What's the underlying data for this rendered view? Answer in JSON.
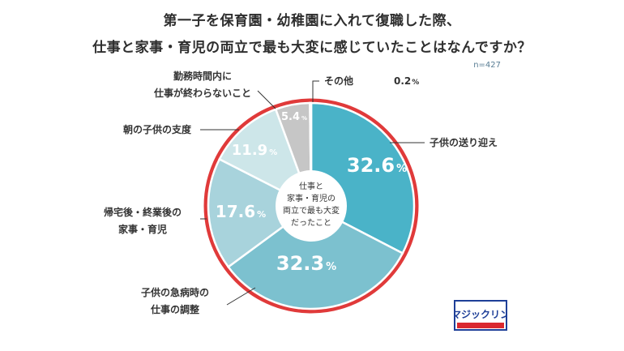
{
  "title_line1": "第一子を保育園・幼稚園に入れて復職した際、",
  "title_line2": "仕事と家事・育児の両立で最も大変に感じていたことはなんですか？",
  "sample": "n=427",
  "chart_data": {
    "type": "pie",
    "center_label": [
      "仕事と",
      "家事・育児の",
      "両立で最も大変",
      "だったこと"
    ],
    "categories": [
      "子供の送り迎え",
      "子供の急病時の仕事の調整",
      "帰宅後・終業後の家事・育児",
      "朝の子供の支度",
      "勤務時間内に仕事が終わらないこと",
      "その他"
    ],
    "values": [
      32.6,
      32.3,
      17.6,
      11.9,
      5.4,
      0.2
    ],
    "value_labels": [
      "32.6",
      "32.3",
      "17.6",
      "11.9",
      "5.4",
      "0.2"
    ],
    "unit": "%",
    "colors": [
      "#4ab3c8",
      "#7cc1cf",
      "#a8d3dc",
      "#cde6e9",
      "#c6c6c6",
      "#c6c6c6"
    ],
    "ring_color": "#e03a3a",
    "callouts": [
      [
        "子供の送り迎え"
      ],
      [
        "子供の急病時の",
        "仕事の調整"
      ],
      [
        "帰宅後・終業後の",
        "家事・育児"
      ],
      [
        "朝の子供の支度"
      ],
      [
        "勤務時間内に",
        "仕事が終わらないこと"
      ],
      [
        "その他"
      ]
    ]
  },
  "brand": {
    "logo_text": "マジックリン",
    "colors": {
      "blue": "#1e3f98",
      "red": "#d9282f"
    }
  }
}
